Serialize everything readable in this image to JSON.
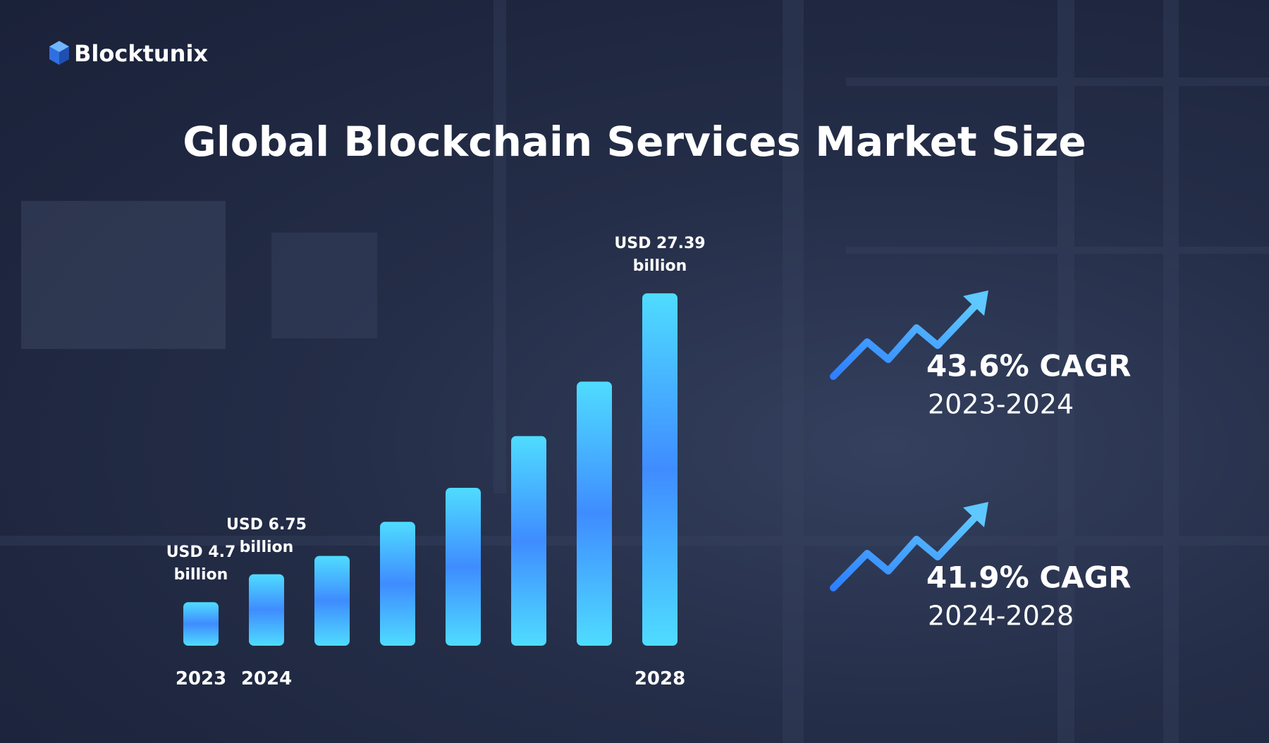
{
  "brand": "Blocktunix",
  "chart_data": {
    "type": "bar",
    "title": "Global Blockchain Services Market Size",
    "categories": [
      "2023",
      "2024",
      null,
      null,
      null,
      null,
      null,
      "2028"
    ],
    "values": [
      4.7,
      6.75,
      8.1,
      10.6,
      13.1,
      16.9,
      20.9,
      27.39
    ],
    "value_labels": [
      "USD 4.7 billion",
      "USD 6.75 billion",
      null,
      null,
      null,
      null,
      null,
      "USD 27.39 billion"
    ],
    "color": "#3f8cff",
    "ylim": [
      1.5,
      27.5
    ],
    "annotations": [
      {
        "text": "43.6% CAGR",
        "period": "2023-2024"
      },
      {
        "text": "41.9% CAGR",
        "period": "2024-2028"
      }
    ]
  }
}
